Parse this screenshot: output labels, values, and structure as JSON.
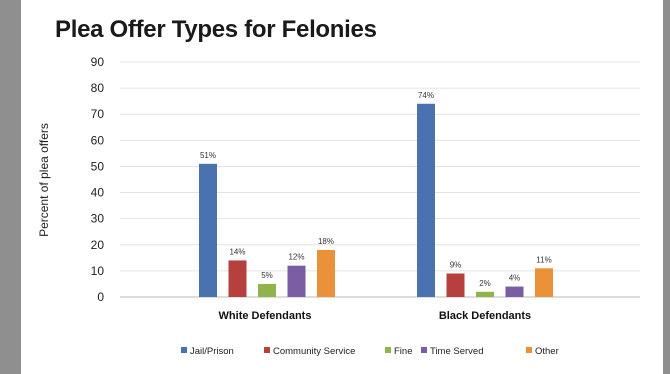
{
  "chart_data": {
    "type": "bar",
    "title": "Plea Offer Types for Felonies",
    "xlabel": "",
    "ylabel": "Percent of plea offers",
    "ylim": [
      0,
      90
    ],
    "yticks": [
      0,
      10,
      20,
      30,
      40,
      50,
      60,
      70,
      80,
      90
    ],
    "categories": [
      "White Defendants",
      "Black Defendants"
    ],
    "series": [
      {
        "name": "Jail/Prison",
        "color": "#4a72b0",
        "values": [
          51,
          74
        ],
        "labels": [
          "51%",
          "74%"
        ]
      },
      {
        "name": "Community Service",
        "color": "#b5403e",
        "values": [
          14,
          9
        ],
        "labels": [
          "14%",
          "9%"
        ]
      },
      {
        "name": "Fine",
        "color": "#8fb44b",
        "values": [
          5,
          2
        ],
        "labels": [
          "5%",
          "2%"
        ]
      },
      {
        "name": "Time Served",
        "color": "#7a5da3",
        "values": [
          12,
          4
        ],
        "labels": [
          "12%",
          "4%"
        ]
      },
      {
        "name": "Other",
        "color": "#ea9139",
        "values": [
          18,
          11
        ],
        "labels": [
          "18%",
          "11%"
        ]
      }
    ],
    "grid": true,
    "legend": "bottom"
  }
}
